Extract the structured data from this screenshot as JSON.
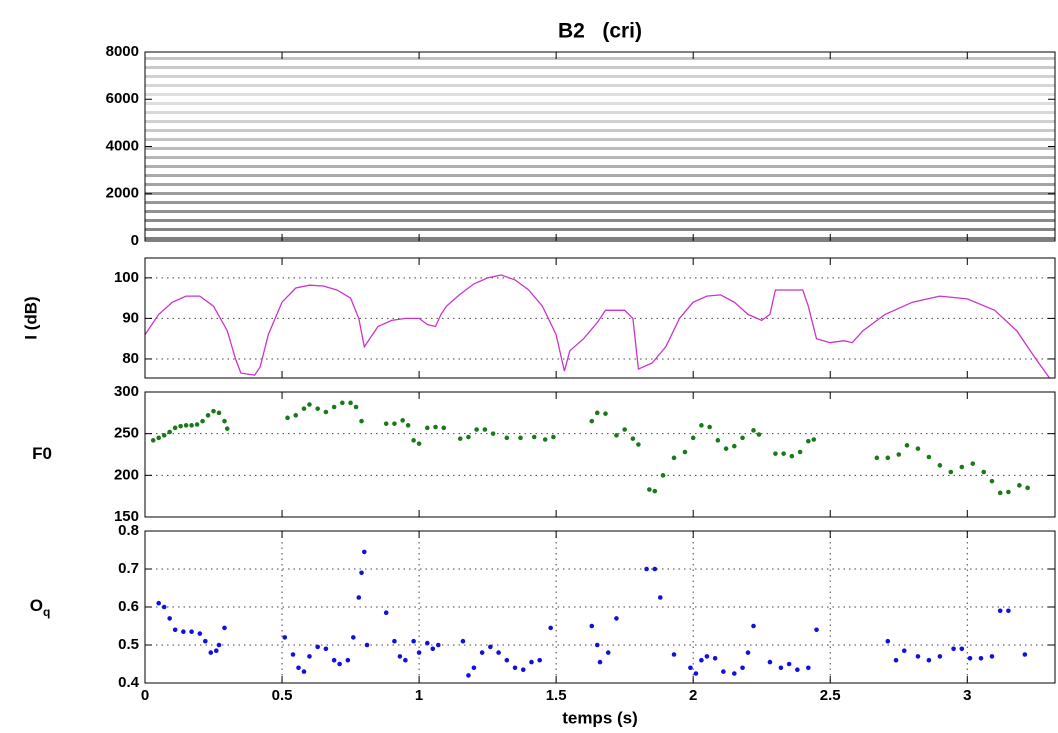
{
  "chart_data": [
    {
      "type": "spectrogram",
      "title": "B2   (cri)",
      "ylim": [
        0,
        8000
      ],
      "yticks": [
        0,
        2000,
        4000,
        6000,
        8000
      ],
      "xlim": [
        0,
        3.32
      ],
      "color": "#222222"
    },
    {
      "type": "line",
      "ylabel": "I (dB)",
      "xlim": [
        0,
        3.32
      ],
      "ylim": [
        75.3,
        104.9
      ],
      "yticks": [
        80,
        90,
        100
      ],
      "grid": "y",
      "x": [
        0,
        0.05,
        0.1,
        0.15,
        0.2,
        0.25,
        0.3,
        0.33,
        0.35,
        0.4,
        0.42,
        0.45,
        0.5,
        0.55,
        0.6,
        0.65,
        0.7,
        0.75,
        0.78,
        0.8,
        0.83,
        0.85,
        0.9,
        0.95,
        1.0,
        1.03,
        1.06,
        1.08,
        1.1,
        1.15,
        1.2,
        1.25,
        1.3,
        1.35,
        1.4,
        1.45,
        1.5,
        1.53,
        1.55,
        1.6,
        1.65,
        1.68,
        1.75,
        1.78,
        1.8,
        1.85,
        1.9,
        1.95,
        2.0,
        2.05,
        2.1,
        2.15,
        2.2,
        2.25,
        2.28,
        2.3,
        2.4,
        2.42,
        2.45,
        2.5,
        2.55,
        2.58,
        2.62,
        2.7,
        2.8,
        2.9,
        3.0,
        3.1,
        3.18,
        3.25,
        3.3
      ],
      "values": [
        86,
        91,
        94,
        95.5,
        95.5,
        93,
        87,
        80,
        76.5,
        76,
        78,
        86,
        94,
        97.5,
        98.2,
        98,
        97,
        95,
        90,
        83,
        86,
        88,
        89.5,
        90,
        90,
        88.5,
        88,
        91,
        93,
        96,
        98.5,
        100,
        100.7,
        99.5,
        97,
        93,
        86,
        77,
        82,
        85,
        89,
        92,
        92,
        90,
        77.5,
        79,
        83,
        90,
        94,
        95.5,
        95.8,
        94,
        91,
        89.5,
        91,
        97,
        97,
        93,
        85,
        84,
        84.5,
        84,
        87,
        91,
        94,
        95.5,
        94.8,
        92,
        87,
        80,
        75.3
      ],
      "color": "#cc33cc"
    },
    {
      "type": "scatter",
      "ylabel": "F0",
      "xlim": [
        0,
        3.32
      ],
      "ylim": [
        150,
        300
      ],
      "yticks": [
        150,
        200,
        250,
        300
      ],
      "grid": "y",
      "x": [
        0.03,
        0.05,
        0.07,
        0.09,
        0.11,
        0.13,
        0.15,
        0.17,
        0.19,
        0.21,
        0.23,
        0.25,
        0.27,
        0.29,
        0.3,
        0.52,
        0.55,
        0.58,
        0.6,
        0.63,
        0.66,
        0.69,
        0.72,
        0.75,
        0.77,
        0.79,
        0.88,
        0.91,
        0.94,
        0.96,
        0.98,
        1.0,
        1.03,
        1.06,
        1.09,
        1.15,
        1.18,
        1.21,
        1.24,
        1.27,
        1.32,
        1.37,
        1.42,
        1.46,
        1.49,
        1.63,
        1.65,
        1.68,
        1.72,
        1.75,
        1.78,
        1.8,
        1.84,
        1.86,
        1.89,
        1.93,
        1.97,
        2.0,
        2.03,
        2.06,
        2.09,
        2.12,
        2.15,
        2.18,
        2.22,
        2.24,
        2.3,
        2.33,
        2.36,
        2.39,
        2.42,
        2.44,
        2.67,
        2.71,
        2.75,
        2.78,
        2.82,
        2.86,
        2.9,
        2.94,
        2.98,
        3.02,
        3.06,
        3.09,
        3.12,
        3.15,
        3.19,
        3.22
      ],
      "values": [
        242,
        245,
        248,
        252,
        257,
        259,
        260,
        260,
        261,
        265,
        272,
        277,
        275,
        265,
        256,
        269,
        272,
        280,
        285,
        280,
        276,
        282,
        287,
        287,
        282,
        265,
        262,
        262,
        266,
        260,
        242,
        238,
        257,
        258,
        257,
        244,
        246,
        255,
        255,
        250,
        245,
        245,
        246,
        243,
        246,
        265,
        275,
        274,
        248,
        255,
        244,
        237,
        183,
        181,
        200,
        221,
        228,
        245,
        260,
        258,
        242,
        232,
        235,
        245,
        254,
        249,
        226,
        226,
        223,
        228,
        241,
        243,
        221,
        221,
        225,
        236,
        232,
        222,
        212,
        204,
        210,
        214,
        204,
        193,
        179,
        180,
        188,
        185
      ],
      "color": "#1a7a1a"
    },
    {
      "type": "scatter",
      "ylabel": "O",
      "ylabel_sub": "q",
      "xlabel": "temps (s)",
      "xlim": [
        0,
        3.32
      ],
      "xticks": [
        0,
        0.5,
        1,
        1.5,
        2,
        2.5,
        3
      ],
      "ylim": [
        0.4,
        0.8
      ],
      "yticks": [
        0.4,
        0.5,
        0.6,
        0.7,
        0.8
      ],
      "grid": "both",
      "x": [
        0.05,
        0.07,
        0.09,
        0.11,
        0.14,
        0.17,
        0.2,
        0.22,
        0.24,
        0.26,
        0.27,
        0.29,
        0.51,
        0.54,
        0.56,
        0.58,
        0.6,
        0.63,
        0.66,
        0.69,
        0.71,
        0.74,
        0.76,
        0.78,
        0.79,
        0.8,
        0.81,
        0.88,
        0.91,
        0.93,
        0.95,
        0.98,
        1.0,
        1.03,
        1.05,
        1.07,
        1.16,
        1.18,
        1.2,
        1.23,
        1.26,
        1.29,
        1.32,
        1.35,
        1.38,
        1.41,
        1.44,
        1.48,
        1.63,
        1.65,
        1.66,
        1.69,
        1.72,
        1.83,
        1.86,
        1.88,
        1.93,
        1.99,
        2.01,
        2.03,
        2.05,
        2.08,
        2.11,
        2.15,
        2.18,
        2.2,
        2.22,
        2.28,
        2.32,
        2.35,
        2.38,
        2.42,
        2.45,
        2.71,
        2.74,
        2.77,
        2.82,
        2.86,
        2.9,
        2.95,
        2.98,
        3.01,
        3.05,
        3.09,
        3.12,
        3.15,
        3.21
      ],
      "values": [
        0.61,
        0.6,
        0.57,
        0.54,
        0.535,
        0.535,
        0.53,
        0.51,
        0.48,
        0.485,
        0.5,
        0.545,
        0.52,
        0.475,
        0.44,
        0.43,
        0.47,
        0.495,
        0.49,
        0.46,
        0.45,
        0.46,
        0.52,
        0.625,
        0.69,
        0.745,
        0.5,
        0.585,
        0.51,
        0.47,
        0.46,
        0.51,
        0.48,
        0.505,
        0.49,
        0.5,
        0.51,
        0.42,
        0.44,
        0.48,
        0.495,
        0.48,
        0.46,
        0.44,
        0.435,
        0.455,
        0.46,
        0.545,
        0.55,
        0.5,
        0.455,
        0.48,
        0.57,
        0.7,
        0.7,
        0.625,
        0.475,
        0.44,
        0.425,
        0.46,
        0.47,
        0.465,
        0.43,
        0.425,
        0.44,
        0.48,
        0.55,
        0.455,
        0.44,
        0.45,
        0.435,
        0.44,
        0.54,
        0.51,
        0.46,
        0.485,
        0.47,
        0.46,
        0.47,
        0.49,
        0.49,
        0.465,
        0.465,
        0.47,
        0.59,
        0.59,
        0.475
      ],
      "color": "#1010e0"
    }
  ]
}
